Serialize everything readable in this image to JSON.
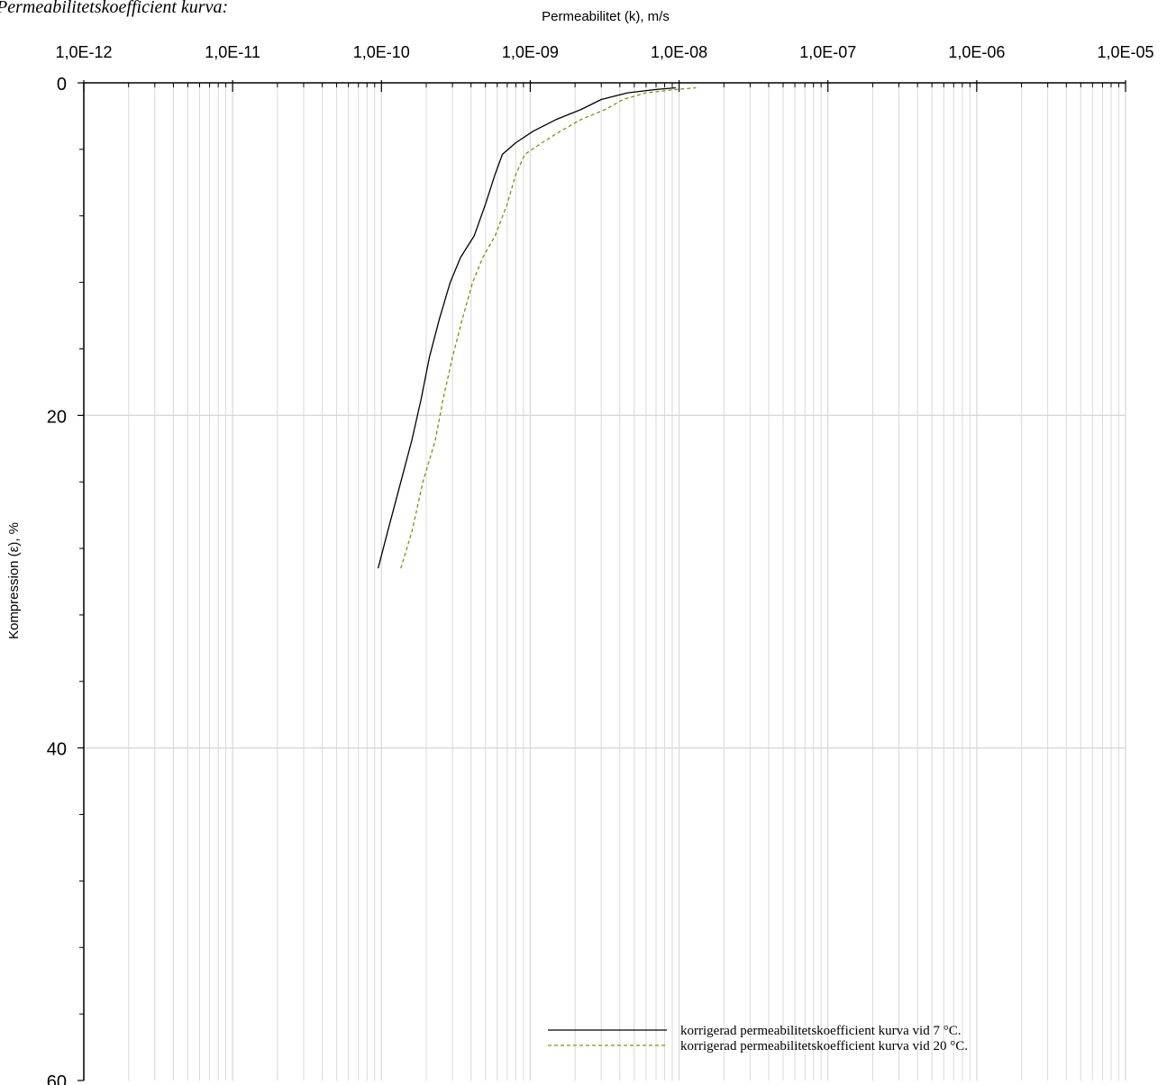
{
  "header": {
    "caption": "Permeabilitetskoefficient kurva:"
  },
  "chart_data": {
    "type": "line",
    "xlabel": "Permeabilitet (k), m/s",
    "ylabel": "Kompression (ε), %",
    "x_scale": "log",
    "xlim": [
      1e-12,
      1e-05
    ],
    "ylim": [
      0,
      60
    ],
    "y_inverted": true,
    "x_ticks": [
      1e-12,
      1e-11,
      1e-10,
      1e-09,
      1e-08,
      1e-07,
      1e-06,
      1e-05
    ],
    "x_tick_labels": [
      "1,0E-12",
      "1,0E-11",
      "1,0E-10",
      "1,0E-09",
      "1,0E-08",
      "1,0E-07",
      "1,0E-06",
      "1,0E-05"
    ],
    "y_ticks": [
      0,
      20,
      40,
      60
    ],
    "y_tick_labels": [
      "0",
      "20",
      "40",
      "60"
    ],
    "grid": true,
    "legend_position": "bottom-right",
    "series": [
      {
        "name": "korrigerad permeabilitetskoefficient kurva vid 7 °C.",
        "color": "#000000",
        "dash": "solid",
        "points": [
          [
            9.5e-11,
            29.2
          ],
          [
            1.1e-10,
            27.0
          ],
          [
            1.35e-10,
            24.0
          ],
          [
            1.6e-10,
            21.5
          ],
          [
            1.85e-10,
            19.0
          ],
          [
            2.1e-10,
            16.5
          ],
          [
            2.45e-10,
            14.2
          ],
          [
            2.9e-10,
            12.0
          ],
          [
            3.4e-10,
            10.5
          ],
          [
            4.2e-10,
            9.2
          ],
          [
            5e-10,
            7.3
          ],
          [
            5.8e-10,
            5.5
          ],
          [
            6.5e-10,
            4.3
          ],
          [
            8e-10,
            3.6
          ],
          [
            1.05e-09,
            2.9
          ],
          [
            1.5e-09,
            2.2
          ],
          [
            2.2e-09,
            1.6
          ],
          [
            3e-09,
            1.0
          ],
          [
            4.5e-09,
            0.6
          ],
          [
            7e-09,
            0.4
          ],
          [
            9.5e-09,
            0.3
          ]
        ]
      },
      {
        "name": "korrigerad permeabilitetskoefficient kurva vid 20 °C.",
        "color": "#8a8a1a",
        "dash": "dashed",
        "points": [
          [
            1.35e-10,
            29.2
          ],
          [
            1.6e-10,
            27.0
          ],
          [
            1.9e-10,
            24.0
          ],
          [
            2.3e-10,
            21.5
          ],
          [
            2.6e-10,
            19.0
          ],
          [
            3e-10,
            16.5
          ],
          [
            3.5e-10,
            14.2
          ],
          [
            4.1e-10,
            12.0
          ],
          [
            4.8e-10,
            10.5
          ],
          [
            5.8e-10,
            9.2
          ],
          [
            7e-10,
            7.3
          ],
          [
            8e-10,
            5.5
          ],
          [
            9.2e-10,
            4.3
          ],
          [
            1.2e-09,
            3.6
          ],
          [
            1.6e-09,
            2.9
          ],
          [
            2.2e-09,
            2.2
          ],
          [
            3.2e-09,
            1.6
          ],
          [
            4.2e-09,
            1.0
          ],
          [
            6e-09,
            0.6
          ],
          [
            9.5e-09,
            0.4
          ],
          [
            1.3e-08,
            0.3
          ]
        ]
      }
    ]
  }
}
